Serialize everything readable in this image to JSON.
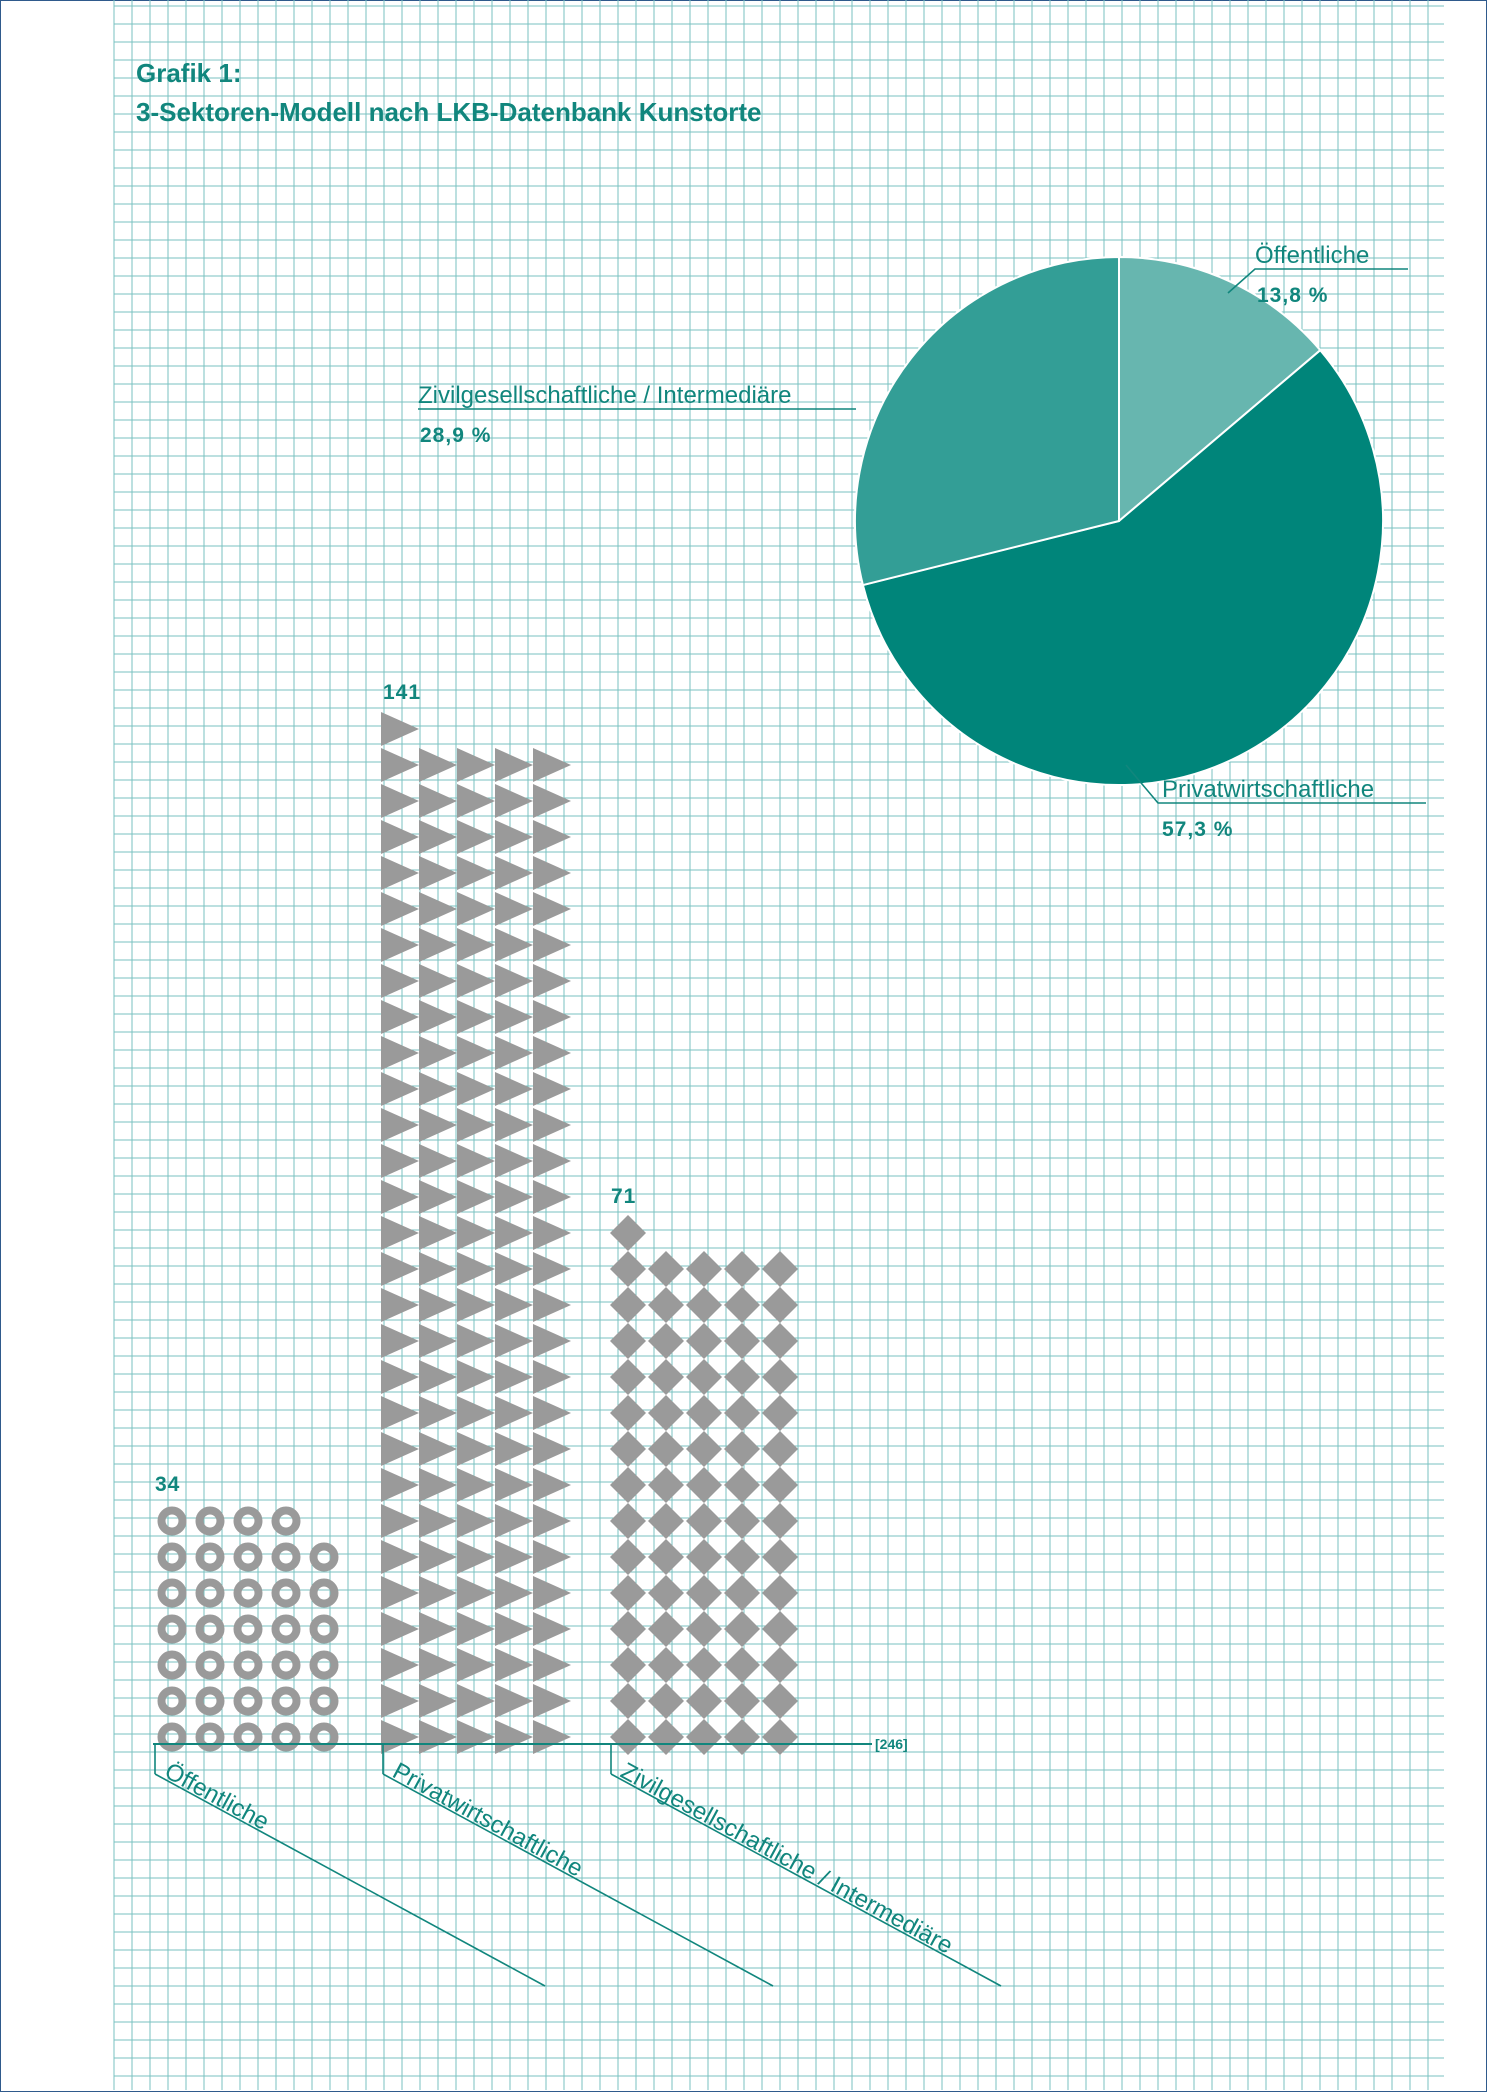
{
  "figure": {
    "title_line1": "Grafik 1:",
    "title_line2": "3-Sektoren-Modell nach LKB-Datenbank Kunstorte"
  },
  "colors": {
    "grid": "#79c2c0",
    "accent": "#11867d",
    "marker": "#9a9a9a",
    "pie_oeffentliche": "#67b6af",
    "pie_privatwirtschaftliche": "#00857a",
    "pie_zivilgesellschaftliche": "#339e96",
    "frame": "#2f5a8c"
  },
  "chart_data": [
    {
      "type": "pie",
      "slices": [
        {
          "label": "Öffentliche",
          "value": 13.8,
          "value_label": "13,8 %",
          "color": "#67b6af"
        },
        {
          "label": "Privatwirtschaftliche",
          "value": 57.3,
          "value_label": "57,3 %",
          "color": "#00857a"
        },
        {
          "label": "Zivilgesellschaftliche / Intermediäre",
          "value": 28.9,
          "value_label": "28,9 %",
          "color": "#339e96"
        }
      ]
    },
    {
      "type": "bar",
      "categories": [
        "Öffentliche",
        "Privatwirtschaftliche",
        "Zivilgesellschaftliche / Intermediäre"
      ],
      "values": [
        34,
        141,
        71
      ],
      "value_labels": [
        "34",
        "141",
        "71"
      ],
      "markers": [
        "ring-icon",
        "triangle-icon",
        "diamond-icon"
      ],
      "total_label": "[246]"
    }
  ]
}
